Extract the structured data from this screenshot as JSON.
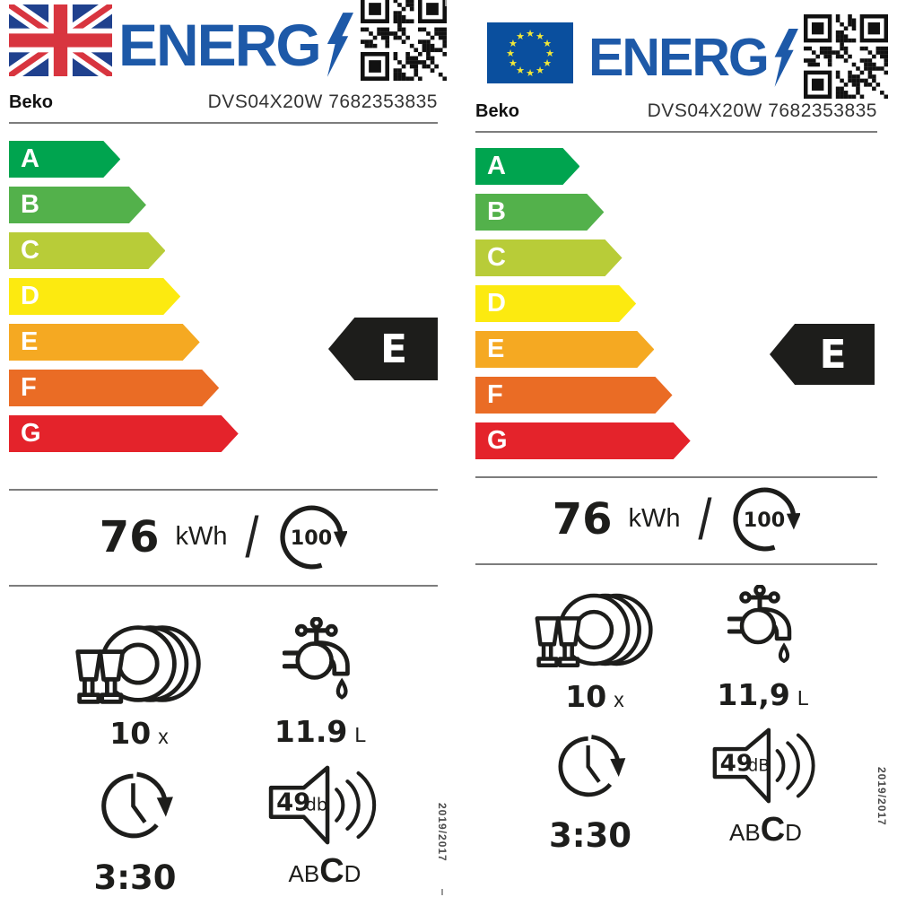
{
  "labels": [
    {
      "region": "UK",
      "flag_icon": "uk-flag",
      "logo_text": "ENERG",
      "brand": "Beko",
      "model": "DVS04X20W 7682353835",
      "scale": [
        {
          "letter": "A",
          "color": "#00a44f"
        },
        {
          "letter": "B",
          "color": "#53b14b"
        },
        {
          "letter": "C",
          "color": "#b8cc38"
        },
        {
          "letter": "D",
          "color": "#fcea10"
        },
        {
          "letter": "E",
          "color": "#f5a922"
        },
        {
          "letter": "F",
          "color": "#ea6c25"
        },
        {
          "letter": "G",
          "color": "#e4232b"
        }
      ],
      "class_rating": "E",
      "energy": {
        "value": "76",
        "unit": "kWh",
        "separator": "/",
        "cycles": "100"
      },
      "place_settings": {
        "value": "10",
        "unit": "x"
      },
      "water": {
        "value": "11.9",
        "unit": "L"
      },
      "duration": "3:30",
      "noise": {
        "value": "49",
        "unit": "db",
        "grade_pre": "AB",
        "grade_current": "C",
        "grade_post": "D"
      },
      "regulation": "2019/2017"
    },
    {
      "region": "EU",
      "flag_icon": "eu-flag",
      "logo_text": "ENERG",
      "brand": "Beko",
      "model": "DVS04X20W 7682353835",
      "scale": [
        {
          "letter": "A",
          "color": "#00a44f"
        },
        {
          "letter": "B",
          "color": "#53b14b"
        },
        {
          "letter": "C",
          "color": "#b8cc38"
        },
        {
          "letter": "D",
          "color": "#fcea10"
        },
        {
          "letter": "E",
          "color": "#f5a922"
        },
        {
          "letter": "F",
          "color": "#ea6c25"
        },
        {
          "letter": "G",
          "color": "#e4232b"
        }
      ],
      "class_rating": "E",
      "energy": {
        "value": "76",
        "unit": "kWh",
        "separator": "/",
        "cycles": "100"
      },
      "place_settings": {
        "value": "10",
        "unit": "x"
      },
      "water": {
        "value": "11,9",
        "unit": "L"
      },
      "duration": "3:30",
      "noise": {
        "value": "49",
        "unit": "dB",
        "grade_pre": "AB",
        "grade_current": "C",
        "grade_post": "D"
      },
      "regulation": "2019/2017"
    }
  ]
}
